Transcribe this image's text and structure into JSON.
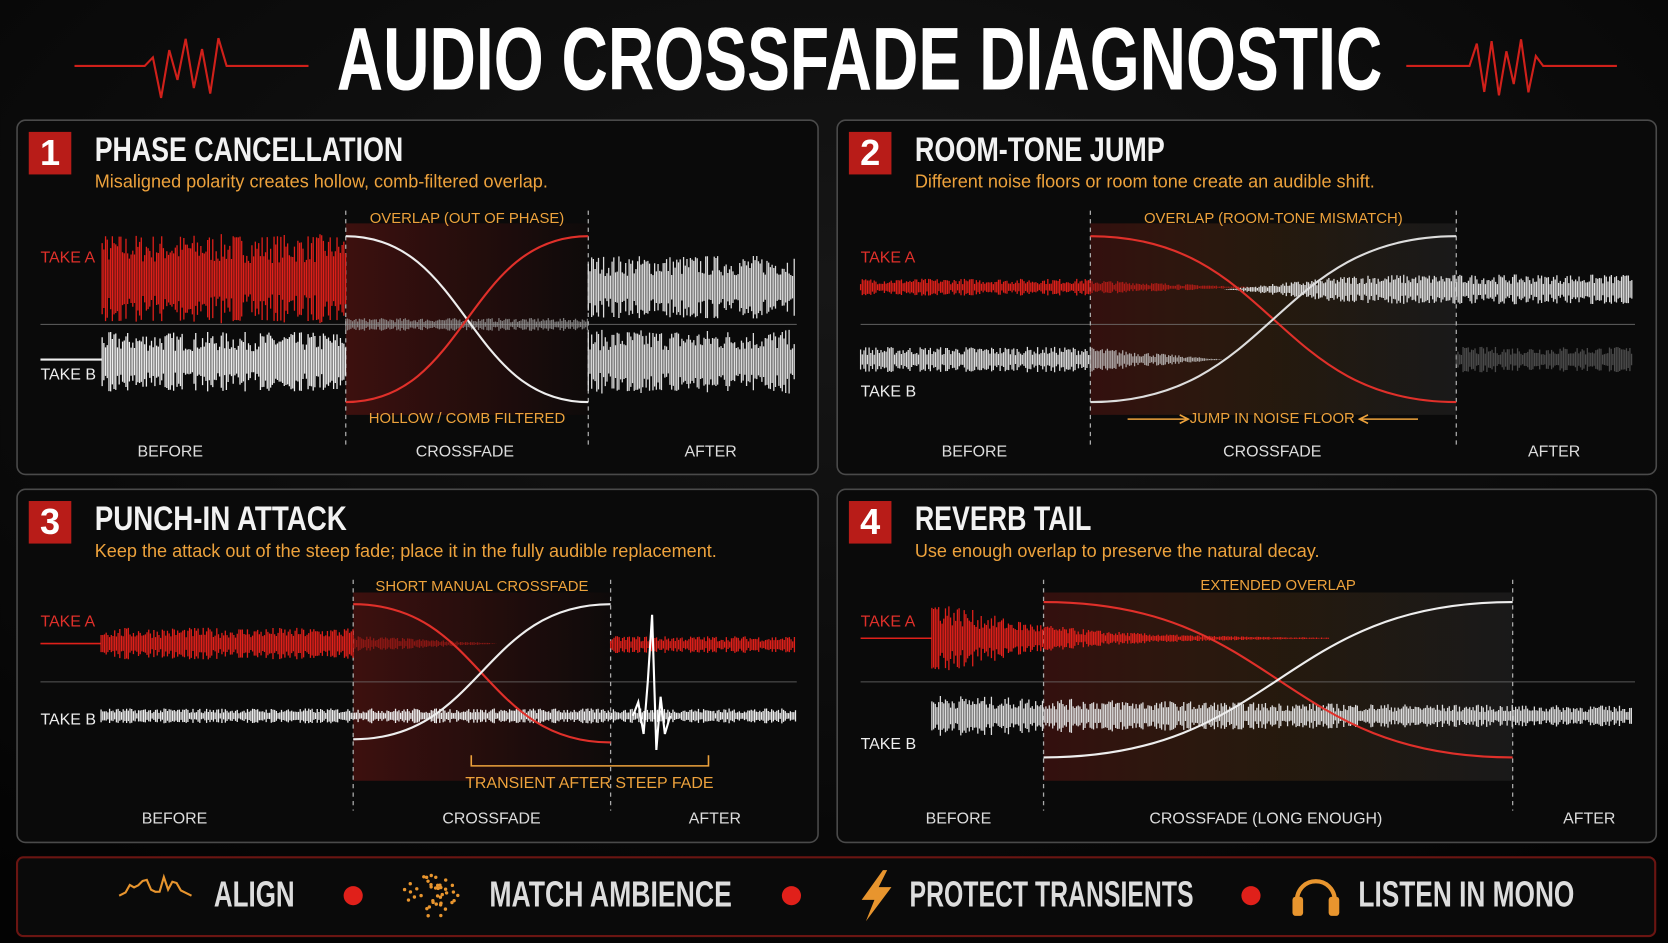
{
  "header": {
    "title": "AUDIO CROSSFADE DIAGNOSTIC"
  },
  "panels": [
    {
      "number": "1",
      "title": "PHASE CANCELLATION",
      "subtitle": "Misaligned polarity creates hollow, comb-filtered overlap.",
      "labels": {
        "take_a": "TAKE A",
        "take_b": "TAKE B",
        "overlap": "OVERLAP (OUT OF PHASE)",
        "note": "HOLLOW / COMB FILTERED",
        "before": "BEFORE",
        "crossfade": "CROSSFADE",
        "after": "AFTER"
      }
    },
    {
      "number": "2",
      "title": "ROOM-TONE JUMP",
      "subtitle": "Different noise floors or room tone create an audible shift.",
      "labels": {
        "take_a": "TAKE A",
        "take_b": "TAKE B",
        "overlap": "OVERLAP (ROOM-TONE MISMATCH)",
        "note": "JUMP IN NOISE FLOOR",
        "before": "BEFORE",
        "crossfade": "CROSSFADE",
        "after": "AFTER"
      }
    },
    {
      "number": "3",
      "title": "PUNCH-IN ATTACK",
      "subtitle": "Keep the attack out of the steep fade; place it in the fully audible replacement.",
      "labels": {
        "take_a": "TAKE A",
        "take_b": "TAKE B",
        "overlap": "SHORT MANUAL CROSSFADE",
        "note": "TRANSIENT AFTER STEEP FADE",
        "before": "BEFORE",
        "crossfade": "CROSSFADE",
        "after": "AFTER"
      }
    },
    {
      "number": "4",
      "title": "REVERB TAIL",
      "subtitle": "Use enough overlap to preserve the natural decay.",
      "labels": {
        "take_a": "TAKE A",
        "take_b": "TAKE B",
        "overlap": "EXTENDED OVERLAP",
        "before": "BEFORE",
        "crossfade": "CROSSFADE (LONG ENOUGH)",
        "after": "AFTER"
      }
    }
  ],
  "footer": {
    "items": [
      "ALIGN",
      "MATCH AMBIENCE",
      "PROTECT TRANSIENTS",
      "LISTEN IN MONO"
    ]
  }
}
